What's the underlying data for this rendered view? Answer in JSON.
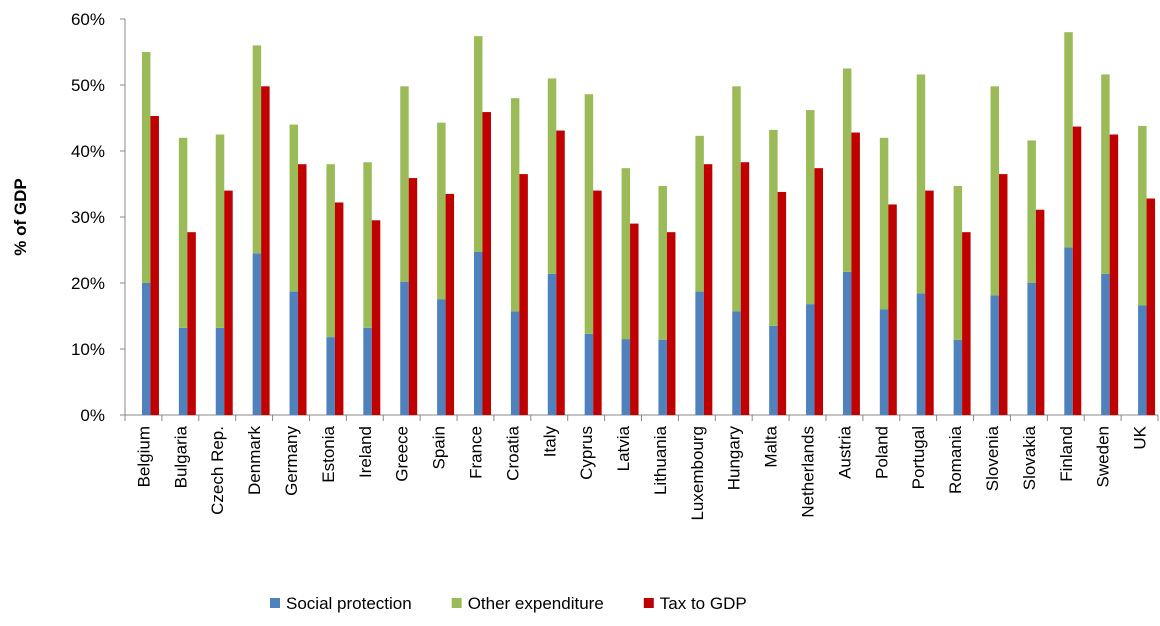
{
  "chart_data": {
    "type": "bar",
    "y_label": "% of GDP",
    "categories": [
      "Belgium",
      "Bulgaria",
      "Czech Rep.",
      "Denmark",
      "Germany",
      "Estonia",
      "Ireland",
      "Greece",
      "Spain",
      "France",
      "Croatia",
      "Italy",
      "Cyprus",
      "Latvia",
      "Lithuania",
      "Luxembourg",
      "Hungary",
      "Malta",
      "Netherlands",
      "Austria",
      "Poland",
      "Portugal",
      "Romania",
      "Slovenia",
      "Slovakia",
      "Finland",
      "Sweden",
      "UK"
    ],
    "series": [
      {
        "name": "Social protection",
        "color": "#4f81bd",
        "values": [
          20,
          13.2,
          13.2,
          24.5,
          18.7,
          11.8,
          13.2,
          20.2,
          17.5,
          24.7,
          15.7,
          21.4,
          12.3,
          11.5,
          11.4,
          18.7,
          15.7,
          13.5,
          16.8,
          21.7,
          16,
          18.4,
          11.4,
          18.1,
          20,
          25.4,
          21.4,
          16.6
        ]
      },
      {
        "name": "Other expenditure",
        "color": "#9bbb59",
        "stack": true,
        "values": [
          35,
          28.8,
          29.3,
          31.5,
          25.3,
          26.2,
          25.1,
          29.6,
          26.8,
          32.7,
          32.3,
          29.6,
          36.3,
          25.9,
          23.3,
          23.6,
          34.1,
          29.7,
          29.4,
          30.8,
          26,
          33.2,
          23.3,
          31.7,
          21.6,
          32.6,
          30.2,
          27.2
        ]
      },
      {
        "name": "Tax to GDP",
        "color": "#c00000",
        "values": [
          45.3,
          27.7,
          34,
          49.8,
          38,
          32.2,
          29.5,
          35.9,
          33.5,
          45.9,
          36.5,
          43.1,
          34,
          29,
          27.7,
          38,
          38.3,
          33.8,
          37.4,
          42.8,
          31.9,
          34,
          27.7,
          36.5,
          31.1,
          43.7,
          42.5,
          32.8
        ]
      }
    ],
    "ylim": [
      0,
      60
    ],
    "yticks": [
      {
        "value": 0,
        "label": "0%"
      },
      {
        "value": 10,
        "label": "10%"
      },
      {
        "value": 20,
        "label": "20%"
      },
      {
        "value": 30,
        "label": "30%"
      },
      {
        "value": 40,
        "label": "40%"
      },
      {
        "value": 50,
        "label": "50%"
      },
      {
        "value": 60,
        "label": "60%"
      }
    ],
    "grid": false,
    "legend": "bottom"
  }
}
